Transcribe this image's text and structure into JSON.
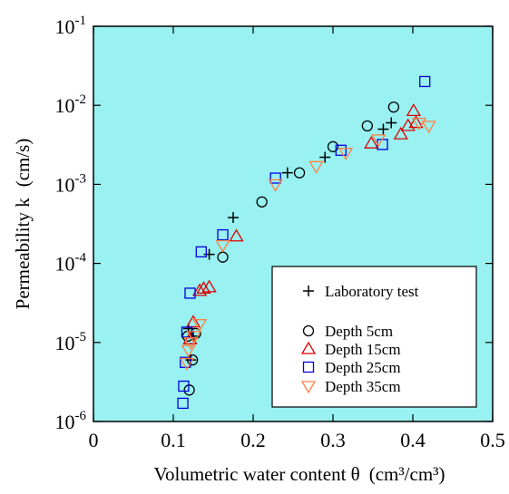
{
  "chart_data": {
    "type": "scatter",
    "xlabel": "Volumetric water content θ",
    "xlabel_unit": "(cm³/cm³)",
    "ylabel": "Permeability k",
    "ylabel_unit": "(cm/s)",
    "xlim": [
      0,
      0.5
    ],
    "ylim": [
      1e-06,
      0.1
    ],
    "y_scale": "log",
    "x_ticks": [
      "0",
      "0.1",
      "0.2",
      "0.3",
      "0.4",
      "0.5"
    ],
    "y_ticks": [
      {
        "base": "10",
        "exp": "-6"
      },
      {
        "base": "10",
        "exp": "-5"
      },
      {
        "base": "10",
        "exp": "-4"
      },
      {
        "base": "10",
        "exp": "-3"
      },
      {
        "base": "10",
        "exp": "-2"
      },
      {
        "base": "10",
        "exp": "-1"
      }
    ],
    "plot_background": "#99f1f1",
    "legend_position": "bottom-right",
    "series": [
      {
        "name": "Laboratory test",
        "marker": "plus",
        "color": "#000000",
        "points": [
          {
            "x": 0.119,
            "y": 1.5e-05
          },
          {
            "x": 0.122,
            "y": 6e-06
          },
          {
            "x": 0.125,
            "y": 1.2e-05
          },
          {
            "x": 0.145,
            "y": 0.00013
          },
          {
            "x": 0.175,
            "y": 0.00038
          },
          {
            "x": 0.243,
            "y": 0.0014
          },
          {
            "x": 0.29,
            "y": 0.0022
          },
          {
            "x": 0.363,
            "y": 0.005
          },
          {
            "x": 0.373,
            "y": 0.006
          }
        ]
      },
      {
        "name": "Depth 5cm",
        "marker": "circle",
        "color": "#000000",
        "points": [
          {
            "x": 0.118,
            "y": 1.2e-05
          },
          {
            "x": 0.12,
            "y": 2.5e-06
          },
          {
            "x": 0.124,
            "y": 6e-06
          },
          {
            "x": 0.128,
            "y": 1.3e-05
          },
          {
            "x": 0.162,
            "y": 0.00012
          },
          {
            "x": 0.211,
            "y": 0.0006
          },
          {
            "x": 0.258,
            "y": 0.0014
          },
          {
            "x": 0.3,
            "y": 0.003
          },
          {
            "x": 0.343,
            "y": 0.0055
          },
          {
            "x": 0.376,
            "y": 0.0095
          }
        ]
      },
      {
        "name": "Depth 15cm",
        "marker": "triangle-up",
        "color": "#e00000",
        "points": [
          {
            "x": 0.121,
            "y": 1.1e-05
          },
          {
            "x": 0.125,
            "y": 1.8e-05
          },
          {
            "x": 0.133,
            "y": 4.5e-05
          },
          {
            "x": 0.138,
            "y": 4.8e-05
          },
          {
            "x": 0.145,
            "y": 5e-05
          },
          {
            "x": 0.179,
            "y": 0.00022
          },
          {
            "x": 0.348,
            "y": 0.0033
          },
          {
            "x": 0.385,
            "y": 0.0043
          },
          {
            "x": 0.394,
            "y": 0.0055
          },
          {
            "x": 0.401,
            "y": 0.0085
          },
          {
            "x": 0.404,
            "y": 0.006
          }
        ]
      },
      {
        "name": "Depth 25cm",
        "marker": "square",
        "color": "#0000e0",
        "points": [
          {
            "x": 0.112,
            "y": 1.7e-06
          },
          {
            "x": 0.113,
            "y": 2.8e-06
          },
          {
            "x": 0.115,
            "y": 5.6e-06
          },
          {
            "x": 0.117,
            "y": 1.35e-05
          },
          {
            "x": 0.121,
            "y": 4.2e-05
          },
          {
            "x": 0.135,
            "y": 0.00014
          },
          {
            "x": 0.162,
            "y": 0.00023
          },
          {
            "x": 0.228,
            "y": 0.0012
          },
          {
            "x": 0.31,
            "y": 0.0027
          },
          {
            "x": 0.362,
            "y": 0.0032
          },
          {
            "x": 0.415,
            "y": 0.02
          }
        ]
      },
      {
        "name": "Depth 35cm",
        "marker": "triangle-down",
        "color": "#ff8040",
        "points": [
          {
            "x": 0.117,
            "y": 5.5e-06
          },
          {
            "x": 0.119,
            "y": 8e-06
          },
          {
            "x": 0.122,
            "y": 1e-05
          },
          {
            "x": 0.126,
            "y": 1.2e-05
          },
          {
            "x": 0.133,
            "y": 1.7e-05
          },
          {
            "x": 0.162,
            "y": 0.00017
          },
          {
            "x": 0.228,
            "y": 0.001
          },
          {
            "x": 0.279,
            "y": 0.0017
          },
          {
            "x": 0.316,
            "y": 0.0025
          },
          {
            "x": 0.357,
            "y": 0.0037
          },
          {
            "x": 0.408,
            "y": 0.006
          },
          {
            "x": 0.42,
            "y": 0.0055
          }
        ]
      }
    ]
  }
}
